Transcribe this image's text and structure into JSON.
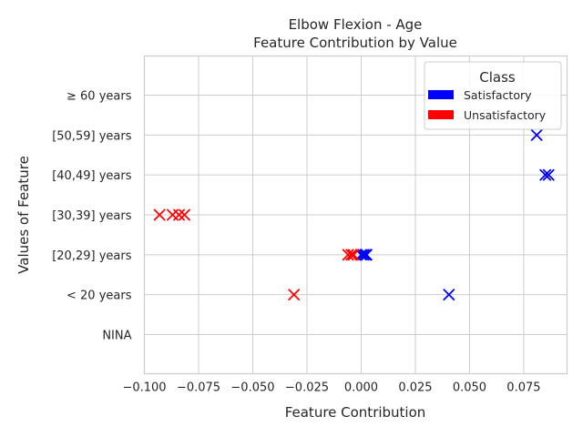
{
  "chart_data": {
    "type": "scatter",
    "title": "Elbow Flexion - Age",
    "subtitle": "Feature Contribution by Value",
    "xlabel": "Feature Contribution",
    "ylabel": "Values of Feature",
    "xlim": [
      -0.1,
      0.095
    ],
    "x_ticks": [
      -0.1,
      -0.075,
      -0.05,
      -0.025,
      0.0,
      0.025,
      0.05,
      0.075
    ],
    "x_tick_labels": [
      "−0.100",
      "−0.075",
      "−0.050",
      "−0.025",
      "0.000",
      "0.025",
      "0.050",
      "0.075"
    ],
    "categories": [
      "NINA",
      "< 20 years",
      "[20,29] years",
      "[30,39] years",
      "[40,49] years",
      "[50,59] years",
      "≥ 60 years"
    ],
    "grid": true,
    "marker": "x",
    "legend": {
      "title": "Class",
      "placement": "top-right",
      "entries": [
        {
          "label": "Satisfactory",
          "color": "#0000ff"
        },
        {
          "label": "Unsatisfactory",
          "color": "#ff0000"
        }
      ]
    },
    "series": [
      {
        "name": "Satisfactory",
        "color": "#0000ff",
        "points": [
          {
            "category": "< 20 years",
            "x": 0.0405
          },
          {
            "category": "[20,29] years",
            "x": 0.0
          },
          {
            "category": "[20,29] years",
            "x": 0.001
          },
          {
            "category": "[20,29] years",
            "x": 0.002
          },
          {
            "category": "[20,29] years",
            "x": 0.0025
          },
          {
            "category": "[40,49] years",
            "x": 0.085
          },
          {
            "category": "[40,49] years",
            "x": 0.0865
          },
          {
            "category": "[50,59] years",
            "x": 0.081
          }
        ]
      },
      {
        "name": "Unsatisfactory",
        "color": "#ff0000",
        "points": [
          {
            "category": "< 20 years",
            "x": -0.031
          },
          {
            "category": "[20,29] years",
            "x": -0.006
          },
          {
            "category": "[20,29] years",
            "x": -0.0045
          },
          {
            "category": "[20,29] years",
            "x": -0.0035
          },
          {
            "category": "[30,39] years",
            "x": -0.093
          },
          {
            "category": "[30,39] years",
            "x": -0.087
          },
          {
            "category": "[30,39] years",
            "x": -0.084
          },
          {
            "category": "[30,39] years",
            "x": -0.0815
          }
        ]
      }
    ]
  }
}
